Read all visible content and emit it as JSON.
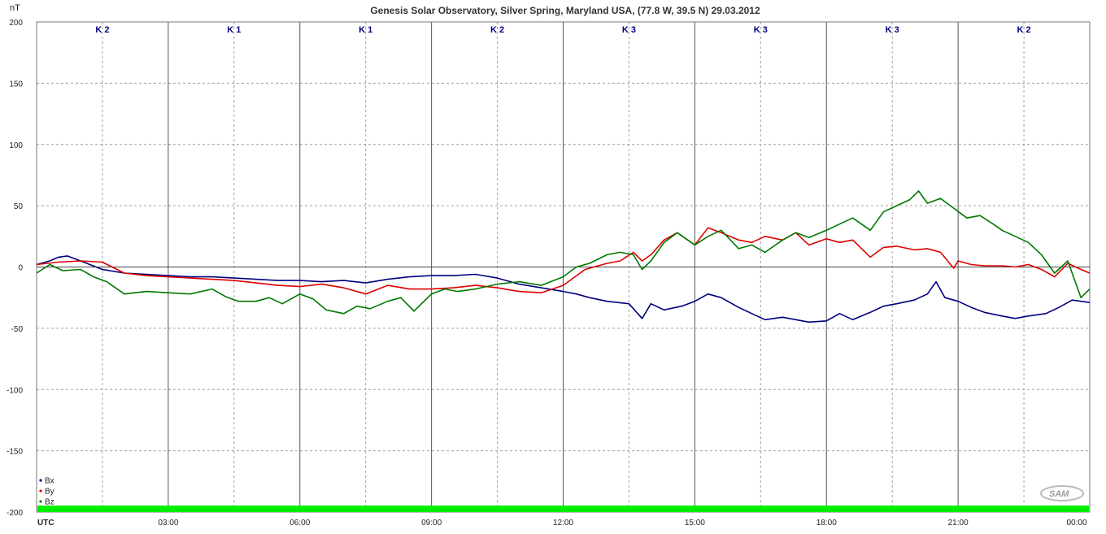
{
  "chart_data": {
    "type": "line",
    "title": "Genesis Solar Observatory, Silver Spring, Maryland USA, (77.8 W, 39.5 N)  29.03.2012",
    "ylabel": "nT",
    "xlabel": "UTC",
    "ylim": [
      -200,
      200
    ],
    "xlim": [
      0,
      24
    ],
    "y_ticks": [
      "200",
      "150",
      "100",
      "50",
      "0",
      "-50",
      "-100",
      "-150",
      "-200"
    ],
    "x_ticks": [
      "03:00",
      "06:00",
      "09:00",
      "12:00",
      "15:00",
      "18:00",
      "21:00",
      "00:00"
    ],
    "grid": true,
    "k_index": [
      "K 2",
      "K 1",
      "K 1",
      "K 2",
      "K 3",
      "K 3",
      "K 3",
      "K 2"
    ],
    "status_bar_color": "#00ee00",
    "logo_text": "SAM",
    "legend_position": "bottom-left",
    "series": [
      {
        "name": "Bx",
        "color": "#000080",
        "x": [
          0,
          0.3,
          0.5,
          0.7,
          1.0,
          1.5,
          2.0,
          2.5,
          3.0,
          3.5,
          4.0,
          4.5,
          5.0,
          5.5,
          6.0,
          6.5,
          7.0,
          7.5,
          8.0,
          8.5,
          9.0,
          9.5,
          10.0,
          10.5,
          11.0,
          11.5,
          12.0,
          12.3,
          12.6,
          13.0,
          13.5,
          13.8,
          14.0,
          14.3,
          14.7,
          15.0,
          15.3,
          15.6,
          16.0,
          16.3,
          16.6,
          17.0,
          17.3,
          17.6,
          18.0,
          18.3,
          18.6,
          19.0,
          19.3,
          19.6,
          20.0,
          20.3,
          20.5,
          20.7,
          21.0,
          21.3,
          21.6,
          22.0,
          22.3,
          22.6,
          23.0,
          23.3,
          23.6,
          24.0
        ],
        "values": [
          2,
          5,
          8,
          9,
          5,
          -2,
          -5,
          -6,
          -7,
          -8,
          -8,
          -9,
          -10,
          -11,
          -11,
          -12,
          -11,
          -13,
          -10,
          -8,
          -7,
          -7,
          -6,
          -9,
          -14,
          -17,
          -20,
          -22,
          -25,
          -28,
          -30,
          -42,
          -30,
          -35,
          -32,
          -28,
          -22,
          -25,
          -33,
          -38,
          -43,
          -41,
          -43,
          -45,
          -44,
          -38,
          -43,
          -37,
          -32,
          -30,
          -27,
          -22,
          -12,
          -25,
          -28,
          -33,
          -37,
          -40,
          -42,
          -40,
          -38,
          -33,
          -27,
          -29
        ]
      },
      {
        "name": "By",
        "color": "#dd0000",
        "x": [
          0,
          0.5,
          1.0,
          1.5,
          2.0,
          2.5,
          3.0,
          3.5,
          4.0,
          4.5,
          5.0,
          5.5,
          6.0,
          6.5,
          7.0,
          7.5,
          8.0,
          8.5,
          9.0,
          9.5,
          10.0,
          10.5,
          11.0,
          11.5,
          12.0,
          12.5,
          13.0,
          13.3,
          13.6,
          13.8,
          14.0,
          14.3,
          14.6,
          15.0,
          15.3,
          15.6,
          16.0,
          16.3,
          16.6,
          17.0,
          17.3,
          17.6,
          18.0,
          18.3,
          18.6,
          19.0,
          19.3,
          19.6,
          20.0,
          20.3,
          20.6,
          20.9,
          21.0,
          21.3,
          21.6,
          22.0,
          22.3,
          22.6,
          22.9,
          23.2,
          23.5,
          23.8,
          24.0
        ],
        "values": [
          2,
          4,
          5,
          4,
          -5,
          -7,
          -8,
          -9,
          -10,
          -11,
          -13,
          -15,
          -16,
          -14,
          -17,
          -22,
          -15,
          -18,
          -18,
          -17,
          -15,
          -17,
          -20,
          -21,
          -15,
          -2,
          3,
          5,
          12,
          5,
          10,
          22,
          28,
          18,
          32,
          28,
          22,
          20,
          25,
          22,
          28,
          18,
          23,
          20,
          22,
          8,
          16,
          17,
          14,
          15,
          12,
          -1,
          5,
          2,
          1,
          1,
          0,
          2,
          -2,
          -8,
          3,
          -2,
          -5
        ]
      },
      {
        "name": "Bz",
        "color": "#007700",
        "x": [
          0,
          0.3,
          0.6,
          1.0,
          1.3,
          1.6,
          2.0,
          2.5,
          3.0,
          3.5,
          4.0,
          4.3,
          4.6,
          5.0,
          5.3,
          5.6,
          6.0,
          6.3,
          6.6,
          7.0,
          7.3,
          7.6,
          8.0,
          8.3,
          8.6,
          9.0,
          9.3,
          9.6,
          10.0,
          10.5,
          11.0,
          11.5,
          12.0,
          12.3,
          12.6,
          13.0,
          13.3,
          13.6,
          13.8,
          14.0,
          14.3,
          14.6,
          15.0,
          15.3,
          15.6,
          16.0,
          16.3,
          16.6,
          17.0,
          17.3,
          17.6,
          18.0,
          18.3,
          18.6,
          19.0,
          19.3,
          19.6,
          19.9,
          20.1,
          20.3,
          20.6,
          20.9,
          21.2,
          21.5,
          21.8,
          22.0,
          22.3,
          22.6,
          22.9,
          23.2,
          23.5,
          23.8,
          24.0
        ],
        "values": [
          -5,
          2,
          -3,
          -2,
          -8,
          -12,
          -22,
          -20,
          -21,
          -22,
          -18,
          -24,
          -28,
          -28,
          -25,
          -30,
          -22,
          -26,
          -35,
          -38,
          -32,
          -34,
          -28,
          -25,
          -36,
          -22,
          -18,
          -20,
          -18,
          -14,
          -12,
          -15,
          -8,
          0,
          3,
          10,
          12,
          10,
          -2,
          5,
          20,
          28,
          18,
          25,
          30,
          15,
          18,
          12,
          22,
          28,
          24,
          30,
          35,
          40,
          30,
          45,
          50,
          55,
          62,
          52,
          56,
          48,
          40,
          42,
          35,
          30,
          25,
          20,
          10,
          -5,
          5,
          -25,
          -18
        ]
      }
    ]
  }
}
